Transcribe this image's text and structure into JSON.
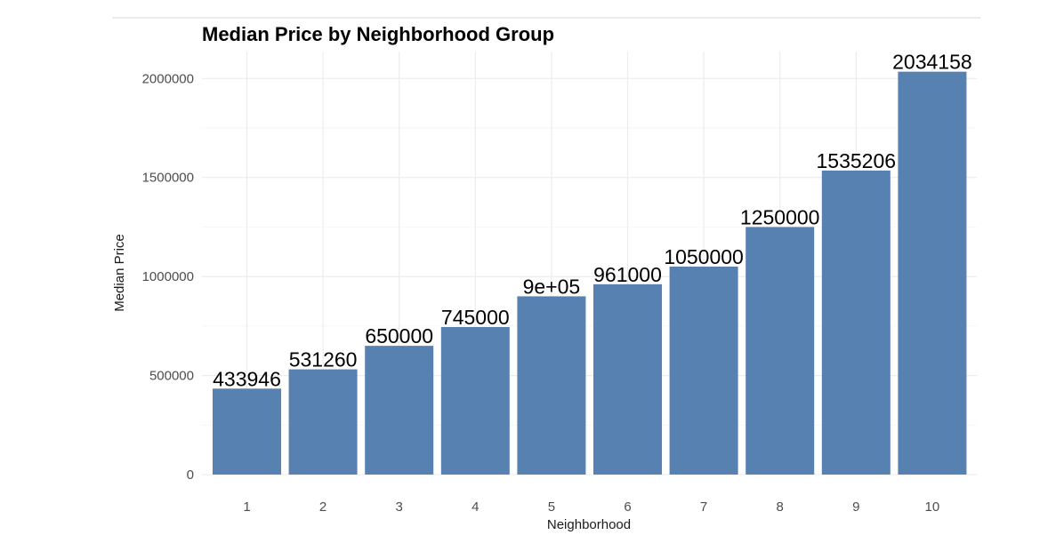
{
  "chart_data": {
    "type": "bar",
    "title": "Median Price by Neighborhood Group",
    "xlabel": "Neighborhood",
    "ylabel": "Median Price",
    "categories": [
      "1",
      "2",
      "3",
      "4",
      "5",
      "6",
      "7",
      "8",
      "9",
      "10"
    ],
    "values": [
      433946,
      531260,
      650000,
      745000,
      900000,
      961000,
      1050000,
      1250000,
      1535206,
      2034158
    ],
    "value_labels": [
      "433946",
      "531260",
      "650000",
      "745000",
      "9e+05",
      "961000",
      "1050000",
      "1250000",
      "1535206",
      "2034158"
    ],
    "ylim": [
      0,
      2135866
    ],
    "y_ticks": [
      0,
      500000,
      1000000,
      1500000,
      2000000
    ],
    "y_tick_labels": [
      "0",
      "500000",
      "1000000",
      "1500000",
      "2000000"
    ],
    "grid": true,
    "bar_color": "#5781b1",
    "legend": "none"
  }
}
